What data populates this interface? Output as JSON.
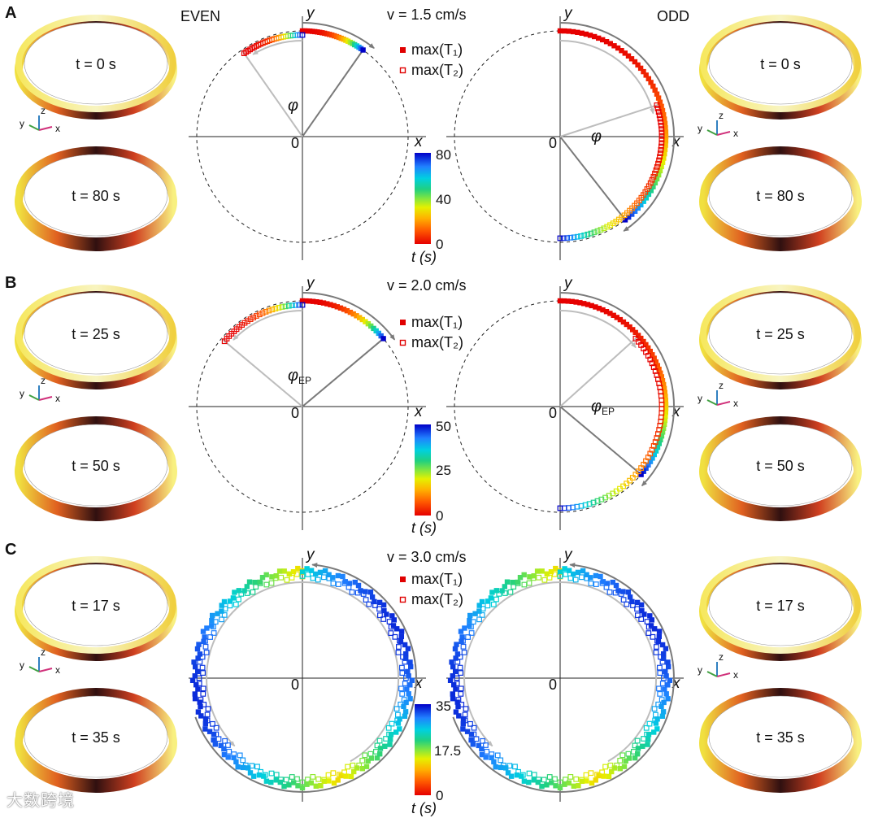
{
  "figure": {
    "labels": {
      "even": "EVEN",
      "odd": "ODD",
      "x": "x",
      "y": "y",
      "origin": "0"
    },
    "legend": {
      "t1": "max(T₁)",
      "t2": "max(T₂)"
    },
    "colorbar_unit": "t (s)",
    "panels": [
      {
        "id": "A",
        "velocity": "v = 1.5 cm/s",
        "tmax": 80,
        "colorbar_ticks": [
          "80",
          "40",
          "0"
        ],
        "even_angle_label": "φ",
        "odd_angle_label": "φ",
        "rings_left": [
          "t = 0 s",
          "t = 80 s"
        ],
        "rings_right": [
          "t = 0 s",
          "t = 80 s"
        ],
        "even": {
          "t1_arc": [
            55,
            90
          ],
          "t2_arc": [
            90,
            125
          ]
        },
        "odd": {
          "t1_arc": [
            -52,
            90
          ],
          "t2_arc": [
            -90,
            18
          ]
        }
      },
      {
        "id": "B",
        "velocity": "v = 2.0 cm/s",
        "tmax": 50,
        "colorbar_ticks": [
          "50",
          "25",
          "0"
        ],
        "even_angle_label": "φ",
        "even_angle_sub": "EP",
        "odd_angle_label": "φ",
        "odd_angle_sub": "EP",
        "rings_left": [
          "t = 25 s",
          "t = 50 s"
        ],
        "rings_right": [
          "t = 25 s",
          "t = 50 s"
        ],
        "even": {
          "t1_arc": [
            40,
            90
          ],
          "t2_arc": [
            90,
            140
          ]
        },
        "odd": {
          "t1_arc": [
            -40,
            90
          ],
          "t2_arc": [
            -90,
            42
          ]
        }
      },
      {
        "id": "C",
        "velocity": "v = 3.0 cm/s",
        "tmax": 35,
        "colorbar_ticks": [
          "35",
          "17.5",
          "0"
        ],
        "rings_left": [
          "t = 17 s",
          "t = 35 s"
        ],
        "rings_right": [
          "t = 17 s",
          "t = 35 s"
        ],
        "even": {
          "t1_arc": [
            -270,
            90
          ],
          "t2_arc": [
            90,
            450
          ]
        },
        "odd": {
          "t1_arc": [
            -270,
            90
          ],
          "t2_arc": [
            90,
            450
          ]
        }
      }
    ]
  },
  "watermark": "大数跨境",
  "colors": {
    "dashed_circle": "#222222",
    "arrow_dark": "#7a7a7a",
    "arrow_light": "#bdbdbd",
    "max_t1": "#e00000",
    "max_t2": "#e00000"
  }
}
